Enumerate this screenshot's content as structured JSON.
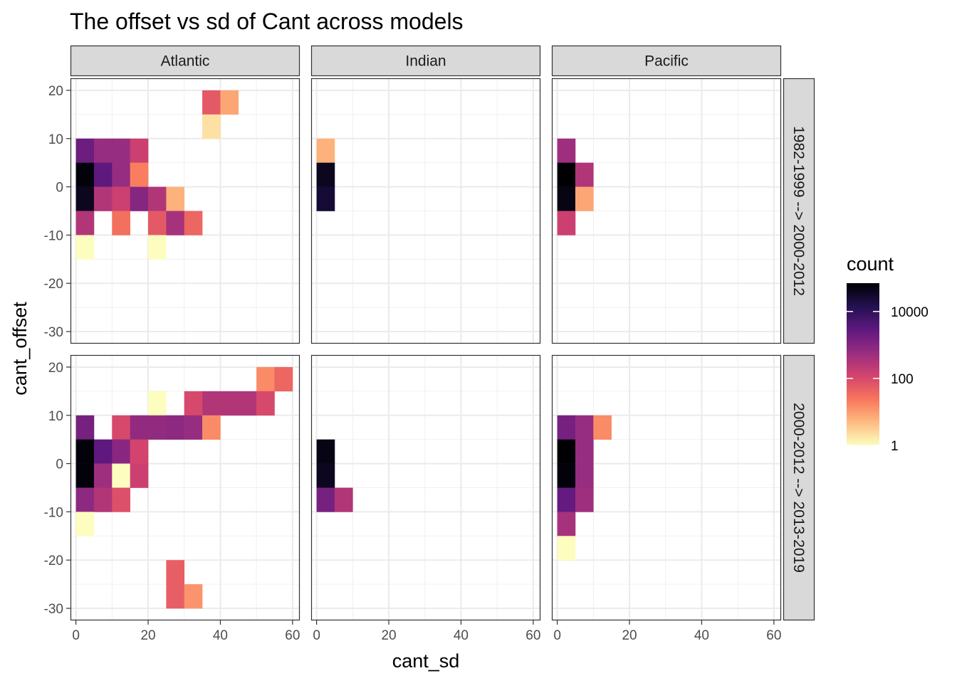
{
  "chart_data": {
    "type": "heatmap",
    "title": "The offset vs sd of Cant across models",
    "xlabel": "cant_sd",
    "ylabel": "cant_offset",
    "x_ticks": [
      0,
      20,
      40,
      60
    ],
    "y_ticks": [
      20,
      10,
      0,
      -10,
      -20,
      -30
    ],
    "xlim": [
      -1.5,
      62
    ],
    "ylim": [
      -32.5,
      22.5
    ],
    "bin_width": 5,
    "columns": [
      "Atlantic",
      "Indian",
      "Pacific"
    ],
    "rows": [
      "1982-1999 --> 2000-2012",
      "2000-2012 --> 2013-2019"
    ],
    "grid": true,
    "color_scale": {
      "name": "count",
      "scale": "log10",
      "breaks": [
        1,
        100,
        10000
      ],
      "break_labels": [
        "1",
        "100",
        "10000"
      ],
      "max": 70000,
      "palette": [
        "#fcfdbf",
        "#febb81",
        "#f8765c",
        "#d3436e",
        "#982d80",
        "#5f187f",
        "#221150",
        "#000004"
      ]
    },
    "panels": [
      {
        "row": 0,
        "col": 0,
        "cells": [
          [
            37.5,
            17.5,
            60
          ],
          [
            42.5,
            17.5,
            8
          ],
          [
            37.5,
            12.5,
            2
          ],
          [
            2.5,
            7.5,
            2000
          ],
          [
            7.5,
            7.5,
            600
          ],
          [
            12.5,
            7.5,
            600
          ],
          [
            17.5,
            7.5,
            150
          ],
          [
            2.5,
            2.5,
            60000
          ],
          [
            7.5,
            2.5,
            3000
          ],
          [
            12.5,
            2.5,
            600
          ],
          [
            17.5,
            2.5,
            20
          ],
          [
            2.5,
            -2.5,
            40000
          ],
          [
            7.5,
            -2.5,
            300
          ],
          [
            12.5,
            -2.5,
            150
          ],
          [
            17.5,
            -2.5,
            1000
          ],
          [
            22.5,
            -2.5,
            300
          ],
          [
            27.5,
            -2.5,
            6
          ],
          [
            2.5,
            -7.5,
            300
          ],
          [
            12.5,
            -7.5,
            30
          ],
          [
            22.5,
            -7.5,
            60
          ],
          [
            27.5,
            -7.5,
            400
          ],
          [
            32.5,
            -7.5,
            40
          ],
          [
            2.5,
            -12.5,
            1
          ],
          [
            22.5,
            -12.5,
            1
          ]
        ]
      },
      {
        "row": 0,
        "col": 1,
        "cells": [
          [
            2.5,
            7.5,
            6
          ],
          [
            2.5,
            2.5,
            40000
          ],
          [
            2.5,
            -2.5,
            25000
          ]
        ]
      },
      {
        "row": 0,
        "col": 2,
        "cells": [
          [
            2.5,
            7.5,
            500
          ],
          [
            2.5,
            2.5,
            70000
          ],
          [
            7.5,
            2.5,
            300
          ],
          [
            2.5,
            -2.5,
            50000
          ],
          [
            7.5,
            -2.5,
            8
          ],
          [
            2.5,
            -7.5,
            150
          ]
        ]
      },
      {
        "row": 1,
        "col": 0,
        "cells": [
          [
            52.5,
            17.5,
            15
          ],
          [
            57.5,
            17.5,
            40
          ],
          [
            22.5,
            12.5,
            1
          ],
          [
            32.5,
            12.5,
            100
          ],
          [
            37.5,
            12.5,
            300
          ],
          [
            42.5,
            12.5,
            300
          ],
          [
            47.5,
            12.5,
            300
          ],
          [
            52.5,
            12.5,
            100
          ],
          [
            2.5,
            7.5,
            1500
          ],
          [
            12.5,
            7.5,
            100
          ],
          [
            17.5,
            7.5,
            700
          ],
          [
            22.5,
            7.5,
            700
          ],
          [
            27.5,
            7.5,
            800
          ],
          [
            32.5,
            7.5,
            600
          ],
          [
            37.5,
            7.5,
            15
          ],
          [
            2.5,
            2.5,
            60000
          ],
          [
            7.5,
            2.5,
            3000
          ],
          [
            12.5,
            2.5,
            900
          ],
          [
            17.5,
            2.5,
            120
          ],
          [
            2.5,
            -2.5,
            60000
          ],
          [
            7.5,
            -2.5,
            500
          ],
          [
            12.5,
            -2.5,
            1
          ],
          [
            17.5,
            -2.5,
            150
          ],
          [
            2.5,
            -7.5,
            800
          ],
          [
            7.5,
            -7.5,
            300
          ],
          [
            12.5,
            -7.5,
            80
          ],
          [
            2.5,
            -12.5,
            1
          ],
          [
            27.5,
            -22.5,
            50
          ],
          [
            27.5,
            -27.5,
            50
          ],
          [
            32.5,
            -27.5,
            12
          ]
        ]
      },
      {
        "row": 1,
        "col": 1,
        "cells": [
          [
            2.5,
            2.5,
            50000
          ],
          [
            2.5,
            -2.5,
            40000
          ],
          [
            2.5,
            -7.5,
            1500
          ],
          [
            7.5,
            -7.5,
            300
          ]
        ]
      },
      {
        "row": 1,
        "col": 2,
        "cells": [
          [
            2.5,
            7.5,
            1500
          ],
          [
            7.5,
            7.5,
            600
          ],
          [
            12.5,
            7.5,
            15
          ],
          [
            2.5,
            2.5,
            70000
          ],
          [
            7.5,
            2.5,
            600
          ],
          [
            2.5,
            -2.5,
            60000
          ],
          [
            7.5,
            -2.5,
            600
          ],
          [
            2.5,
            -7.5,
            2500
          ],
          [
            7.5,
            -7.5,
            500
          ],
          [
            2.5,
            -12.5,
            400
          ],
          [
            2.5,
            -17.5,
            1
          ]
        ]
      }
    ]
  }
}
